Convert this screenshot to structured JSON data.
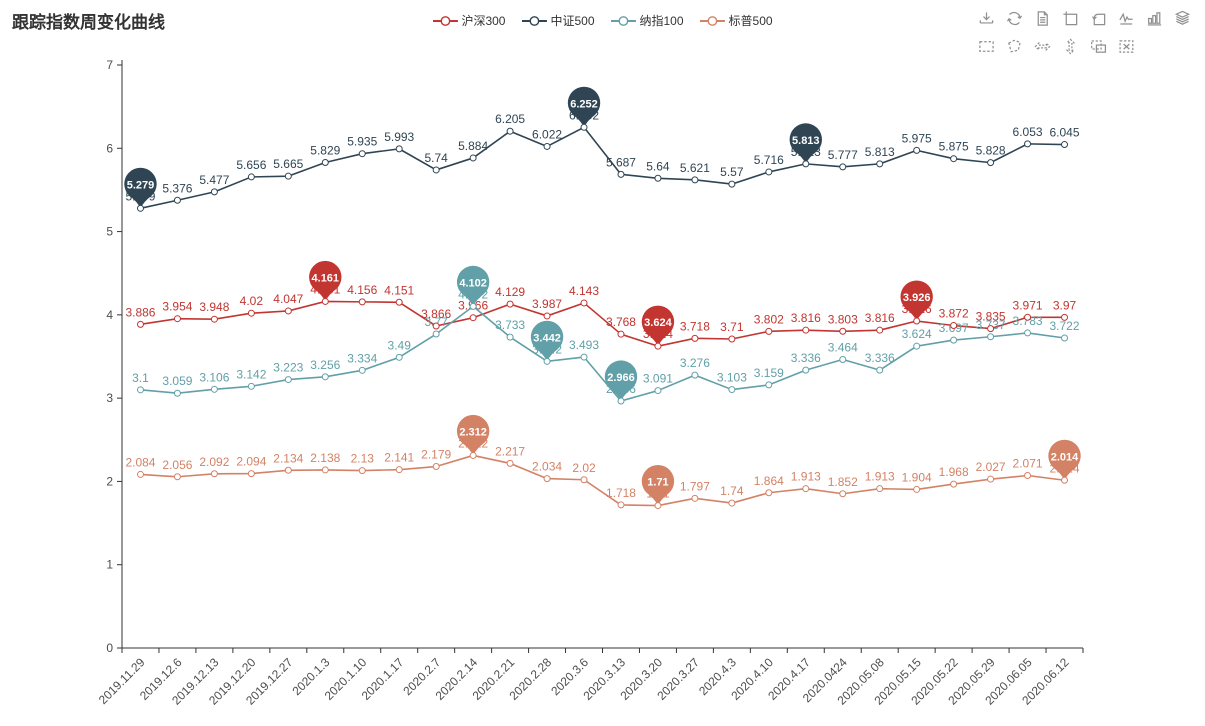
{
  "title": "跟踪指数周变化曲线",
  "legend": {
    "items": [
      {
        "label": "沪深300",
        "color": "#c23531"
      },
      {
        "label": "中证500",
        "color": "#2f4554"
      },
      {
        "label": "纳指100",
        "color": "#61a0a8"
      },
      {
        "label": "标普500",
        "color": "#d48265"
      }
    ]
  },
  "toolbox": {
    "row1": [
      "save-image",
      "restore",
      "data-view",
      "zoom-in",
      "zoom-reset",
      "line-chart",
      "bar-chart",
      "stack"
    ],
    "row2": [
      "brush-rect",
      "brush-polygon",
      "brush-horizontal",
      "brush-vertical",
      "brush-keep",
      "brush-clear"
    ]
  },
  "chart_data": {
    "type": "line",
    "title": "跟踪指数周变化曲线",
    "x": [
      "2019.11.29",
      "2019.12.6",
      "2019.12.13",
      "2019.12.20",
      "2019.12.27",
      "2020.1.3",
      "2020.1.10",
      "2020.1.17",
      "2020.2.7",
      "2020.2.14",
      "2020.2.21",
      "2020.2.28",
      "2020.3.6",
      "2020.3.13",
      "2020.3.20",
      "2020.3.27",
      "2020.4.3",
      "2020.4.10",
      "2020.4.17",
      "2020.0424",
      "2020.05.08",
      "2020.05.15",
      "2020.05.22",
      "2020.05.29",
      "2020.06.05",
      "2020.06.12"
    ],
    "series": [
      {
        "name": "沪深300",
        "color": "#c23531",
        "values": [
          3.886,
          3.954,
          3.948,
          4.02,
          4.047,
          4.161,
          4.156,
          4.151,
          3.866,
          3.966,
          4.129,
          3.987,
          4.143,
          3.768,
          3.624,
          3.718,
          3.71,
          3.802,
          3.816,
          3.803,
          3.816,
          3.926,
          3.872,
          3.835,
          3.971,
          3.97
        ],
        "markers": [
          {
            "index": 5,
            "value": 4.161
          },
          {
            "index": 14,
            "value": 3.624
          },
          {
            "index": 21,
            "value": 3.926
          }
        ]
      },
      {
        "name": "中证500",
        "color": "#2f4554",
        "values": [
          5.279,
          5.376,
          5.477,
          5.656,
          5.665,
          5.829,
          5.935,
          5.993,
          5.74,
          5.884,
          6.205,
          6.022,
          6.252,
          5.687,
          5.64,
          5.621,
          5.57,
          5.716,
          5.813,
          5.777,
          5.813,
          5.975,
          5.875,
          5.828,
          6.053,
          6.045
        ],
        "markers": [
          {
            "index": 0,
            "value": 5.279
          },
          {
            "index": 12,
            "value": 6.252
          },
          {
            "index": 18,
            "value": 5.813
          }
        ]
      },
      {
        "name": "纳指100",
        "color": "#61a0a8",
        "values": [
          3.1,
          3.059,
          3.106,
          3.142,
          3.223,
          3.256,
          3.334,
          3.49,
          3.77,
          4.102,
          3.733,
          3.442,
          3.493,
          2.966,
          3.091,
          3.276,
          3.103,
          3.159,
          3.336,
          3.464,
          3.336,
          3.624,
          3.697,
          3.737,
          3.783,
          3.722
        ],
        "markers": [
          {
            "index": 9,
            "value": 4.102
          },
          {
            "index": 11,
            "value": 3.442
          },
          {
            "index": 13,
            "value": 2.966
          }
        ]
      },
      {
        "name": "标普500",
        "color": "#d48265",
        "values": [
          2.084,
          2.056,
          2.092,
          2.094,
          2.134,
          2.138,
          2.13,
          2.141,
          2.179,
          2.312,
          2.217,
          2.034,
          2.02,
          1.718,
          1.71,
          1.797,
          1.74,
          1.864,
          1.913,
          1.852,
          1.913,
          1.904,
          1.968,
          2.027,
          2.071,
          2.014
        ],
        "markers": [
          {
            "index": 9,
            "value": 2.312
          },
          {
            "index": 14,
            "value": 1.71
          },
          {
            "index": 25,
            "value": 2.014
          }
        ]
      }
    ],
    "ylim": [
      0,
      7
    ],
    "yticks": [
      0,
      1,
      2,
      3,
      4,
      5,
      6,
      7
    ],
    "grid": false,
    "legend_position": "top-center",
    "axis_color": "#333333",
    "label_color": "#4d4d4d"
  }
}
